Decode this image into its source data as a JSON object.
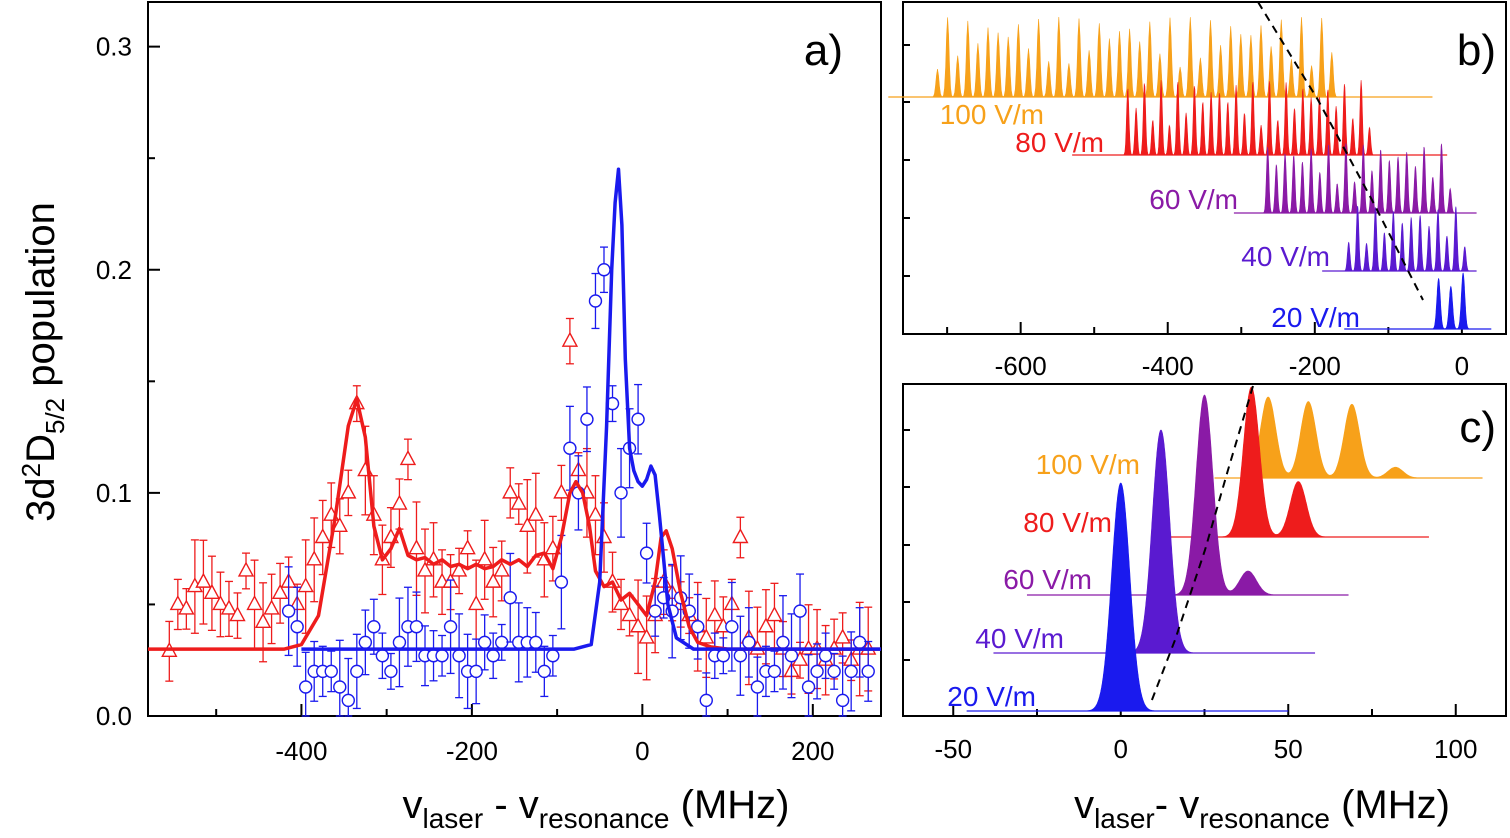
{
  "colors": {
    "red": "#ee1c1c",
    "blue": "#1a1aee",
    "orange": "#f7a11a",
    "purple": "#7a1aa6",
    "violet": "#5a1ad0"
  },
  "panel_a": {
    "label": "a)",
    "ylabel_main": "3d",
    "ylabel_sup": "2",
    "ylabel_d": "D",
    "ylabel_sub": "5/2",
    "ylabel_rest": " population",
    "xlabel_v1": "v",
    "xlabel_sub1": "laser",
    "xlabel_mid": " - v",
    "xlabel_sub2": "resonance",
    "xlabel_unit": " (MHz)",
    "xticks": [
      "-400",
      "-200",
      "0",
      "200"
    ],
    "yticks": [
      "0.0",
      "0.1",
      "0.2",
      "0.3"
    ]
  },
  "panel_b": {
    "label": "b)",
    "xticks": [
      "-600",
      "-400",
      "-200",
      "0"
    ],
    "spectra": [
      {
        "field": "100 V/m",
        "color": "#f7a11a"
      },
      {
        "field": "80 V/m",
        "color": "#ee1c1c"
      },
      {
        "field": "60 V/m",
        "color": "#8a1aa6"
      },
      {
        "field": "40 V/m",
        "color": "#5a1ad0"
      },
      {
        "field": "20 V/m",
        "color": "#1a1aee"
      }
    ]
  },
  "panel_c": {
    "label": "c)",
    "xticks": [
      "-50",
      "0",
      "50",
      "100"
    ],
    "xlabel_v1": "v",
    "xlabel_sub1": "laser",
    "xlabel_mid": "- v",
    "xlabel_sub2": "resonance",
    "xlabel_unit": " (MHz)",
    "spectra": [
      {
        "field": "100 V/m",
        "color": "#f7a11a"
      },
      {
        "field": "80 V/m",
        "color": "#ee1c1c"
      },
      {
        "field": "60 V/m",
        "color": "#8a1aa6"
      },
      {
        "field": "40 V/m",
        "color": "#5a1ad0"
      },
      {
        "field": "20 V/m",
        "color": "#1a1aee"
      }
    ]
  },
  "chart_data": [
    {
      "type": "scatter",
      "title": "a)",
      "xlabel": "vlaser - vresonance (MHz)",
      "ylabel": "3d2D5/2 population",
      "xlim": [
        -580,
        280
      ],
      "ylim": [
        0,
        0.32
      ],
      "series": [
        {
          "name": "red triangles (data)",
          "marker": "triangle",
          "x": [
            -555,
            -545,
            -535,
            -525,
            -515,
            -505,
            -495,
            -485,
            -475,
            -465,
            -455,
            -445,
            -435,
            -425,
            -415,
            -405,
            -395,
            -385,
            -375,
            -365,
            -355,
            -345,
            -335,
            -325,
            -315,
            -305,
            -295,
            -285,
            -275,
            -265,
            -255,
            -245,
            -235,
            -225,
            -215,
            -205,
            -195,
            -185,
            -175,
            -165,
            -155,
            -145,
            -135,
            -125,
            -115,
            -105,
            -95,
            -85,
            -75,
            -65,
            -55,
            -45,
            -35,
            -25,
            -15,
            -5,
            5,
            15,
            25,
            35,
            45,
            55,
            65,
            75,
            85,
            95,
            105,
            115,
            125,
            135,
            145,
            155,
            165,
            175,
            185,
            195,
            205,
            215,
            225,
            235,
            245,
            255,
            265
          ],
          "y": [
            0.029,
            0.05,
            0.048,
            0.058,
            0.06,
            0.055,
            0.05,
            0.048,
            0.045,
            0.065,
            0.05,
            0.042,
            0.048,
            0.055,
            0.06,
            0.05,
            0.058,
            0.07,
            0.08,
            0.09,
            0.085,
            0.1,
            0.14,
            0.11,
            0.09,
            0.07,
            0.08,
            0.095,
            0.115,
            0.075,
            0.065,
            0.07,
            0.06,
            0.06,
            0.065,
            0.075,
            0.05,
            0.07,
            0.06,
            0.065,
            0.1,
            0.095,
            0.085,
            0.09,
            0.07,
            0.075,
            0.1,
            0.168,
            0.11,
            0.1,
            0.09,
            0.08,
            0.06,
            0.05,
            0.045,
            0.04,
            0.035,
            0.045,
            0.06,
            0.055,
            0.05,
            0.045,
            0.04,
            0.035,
            0.045,
            0.04,
            0.05,
            0.08,
            0.035,
            0.03,
            0.04,
            0.045,
            0.03,
            0.02,
            0.025,
            0.03,
            0.03,
            0.025,
            0.03,
            0.035,
            0.025,
            0.03,
            0.03
          ]
        },
        {
          "name": "blue circles (data)",
          "marker": "circle",
          "x": [
            -415,
            -405,
            -395,
            -385,
            -375,
            -365,
            -355,
            -345,
            -335,
            -325,
            -315,
            -305,
            -295,
            -285,
            -275,
            -265,
            -255,
            -245,
            -235,
            -225,
            -215,
            -205,
            -195,
            -185,
            -175,
            -165,
            -155,
            -145,
            -135,
            -125,
            -115,
            -105,
            -95,
            -85,
            -75,
            -65,
            -55,
            -45,
            -35,
            -25,
            -15,
            -5,
            5,
            15,
            25,
            35,
            45,
            55,
            65,
            75,
            85,
            95,
            105,
            115,
            125,
            135,
            145,
            155,
            165,
            175,
            185,
            195,
            205,
            215,
            225,
            235,
            245,
            255,
            265
          ],
          "y": [
            0.047,
            0.04,
            0.013,
            0.02,
            0.02,
            0.02,
            0.013,
            0.007,
            0.02,
            0.033,
            0.04,
            0.027,
            0.02,
            0.033,
            0.04,
            0.04,
            0.027,
            0.027,
            0.027,
            0.04,
            0.027,
            0.02,
            0.02,
            0.033,
            0.027,
            0.033,
            0.053,
            0.033,
            0.033,
            0.033,
            0.02,
            0.027,
            0.06,
            0.12,
            0.1,
            0.133,
            0.186,
            0.2,
            0.14,
            0.1,
            0.12,
            0.133,
            0.073,
            0.047,
            0.053,
            0.047,
            0.053,
            0.047,
            0.04,
            0.007,
            0.027,
            0.027,
            0.04,
            0.027,
            0.033,
            0.013,
            0.02,
            0.02,
            0.033,
            0.027,
            0.047,
            0.013,
            0.02,
            0.027,
            0.02,
            0.007,
            0.02,
            0.033,
            0.02
          ]
        },
        {
          "name": "red curve (theory)",
          "marker": "line",
          "x": [
            -580,
            -420,
            -400,
            -380,
            -360,
            -345,
            -335,
            -325,
            -315,
            -305,
            -295,
            -285,
            -275,
            -265,
            -255,
            -245,
            -235,
            -225,
            -215,
            -205,
            -195,
            -185,
            -175,
            -165,
            -155,
            -145,
            -135,
            -125,
            -115,
            -105,
            -95,
            -85,
            -78,
            -70,
            -62,
            -55,
            -45,
            -35,
            -25,
            -15,
            -5,
            5,
            15,
            22,
            28,
            35,
            45,
            55,
            65,
            80,
            100,
            150,
            280
          ],
          "y": [
            0.03,
            0.03,
            0.032,
            0.045,
            0.09,
            0.13,
            0.142,
            0.125,
            0.085,
            0.07,
            0.075,
            0.084,
            0.072,
            0.07,
            0.071,
            0.068,
            0.07,
            0.067,
            0.068,
            0.066,
            0.068,
            0.066,
            0.067,
            0.07,
            0.068,
            0.07,
            0.067,
            0.072,
            0.073,
            0.066,
            0.08,
            0.1,
            0.105,
            0.1,
            0.085,
            0.065,
            0.058,
            0.06,
            0.052,
            0.055,
            0.05,
            0.045,
            0.06,
            0.08,
            0.083,
            0.075,
            0.055,
            0.04,
            0.033,
            0.031,
            0.03,
            0.03,
            0.03
          ]
        },
        {
          "name": "blue curve (theory)",
          "marker": "line",
          "x": [
            -400,
            -80,
            -60,
            -50,
            -42,
            -36,
            -32,
            -28,
            -24,
            -20,
            -15,
            -10,
            -5,
            0,
            5,
            10,
            15,
            20,
            25,
            30,
            40,
            60,
            280
          ],
          "y": [
            0.03,
            0.03,
            0.032,
            0.06,
            0.13,
            0.2,
            0.23,
            0.245,
            0.22,
            0.16,
            0.12,
            0.11,
            0.105,
            0.103,
            0.106,
            0.112,
            0.108,
            0.09,
            0.07,
            0.05,
            0.035,
            0.03,
            0.03
          ]
        }
      ]
    },
    {
      "type": "area",
      "title": "b)",
      "xlabel": "vlaser - vresonance (MHz)",
      "xlim": [
        -760,
        60
      ],
      "series": [
        {
          "name": "20 V/m",
          "range": [
            -40,
            10
          ]
        },
        {
          "name": "40 V/m",
          "range": [
            -160,
            10
          ]
        },
        {
          "name": "60 V/m",
          "range": [
            -270,
            -10
          ]
        },
        {
          "name": "80 V/m",
          "range": [
            -460,
            -120
          ]
        },
        {
          "name": "100 V/m",
          "range": [
            -720,
            -170
          ]
        }
      ]
    },
    {
      "type": "area",
      "title": "c)",
      "xlabel": "vlaser- vresonance (MHz)",
      "xlim": [
        -65,
        115
      ],
      "series": [
        {
          "name": "20 V/m",
          "peaks": [
            0
          ]
        },
        {
          "name": "40 V/m",
          "peaks": [
            12
          ]
        },
        {
          "name": "60 V/m",
          "peaks": [
            25,
            38
          ]
        },
        {
          "name": "80 V/m",
          "peaks": [
            39,
            53
          ]
        },
        {
          "name": "100 V/m",
          "peaks": [
            44,
            56,
            69,
            82
          ]
        }
      ]
    }
  ]
}
